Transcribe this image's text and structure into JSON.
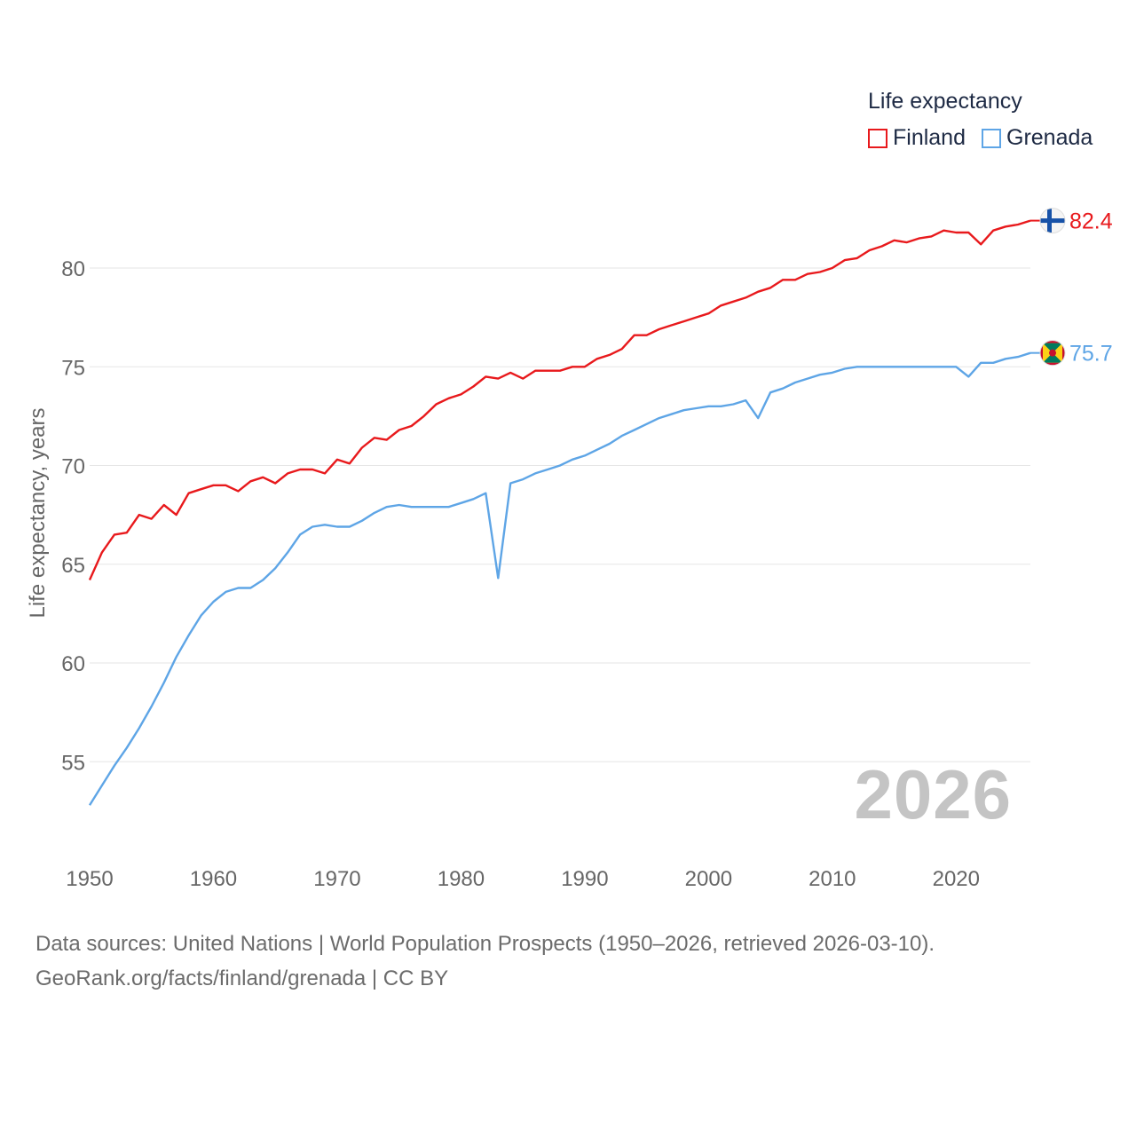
{
  "legend": {
    "title": "Life expectancy",
    "items": [
      {
        "name": "Finland",
        "color": "#e8191c"
      },
      {
        "name": "Grenada",
        "color": "#5ea5e6"
      }
    ]
  },
  "current_year": "2026",
  "footer": {
    "line1": "Data sources: United Nations | World Population Prospects (1950–2026, retrieved 2026-03-10).",
    "line2": "GeoRank.org/facts/finland/grenada | CC BY"
  },
  "chart_data": {
    "type": "line",
    "title": "Life expectancy",
    "xlabel": "",
    "ylabel": "Life expectancy, years",
    "xlim": [
      1950,
      2026
    ],
    "ylim": [
      52,
      84
    ],
    "x_ticks": [
      1950,
      1960,
      1970,
      1980,
      1990,
      2000,
      2010,
      2020
    ],
    "y_ticks": [
      55,
      60,
      65,
      70,
      75,
      80
    ],
    "grid": true,
    "legend_position": "top-right",
    "end_labels": [
      {
        "series": "Finland",
        "label": "82.4",
        "icon": "finland-flag-icon"
      },
      {
        "series": "Grenada",
        "label": "75.7",
        "icon": "grenada-flag-icon"
      }
    ],
    "x": [
      1950,
      1951,
      1952,
      1953,
      1954,
      1955,
      1956,
      1957,
      1958,
      1959,
      1960,
      1961,
      1962,
      1963,
      1964,
      1965,
      1966,
      1967,
      1968,
      1969,
      1970,
      1971,
      1972,
      1973,
      1974,
      1975,
      1976,
      1977,
      1978,
      1979,
      1980,
      1981,
      1982,
      1983,
      1984,
      1985,
      1986,
      1987,
      1988,
      1989,
      1990,
      1991,
      1992,
      1993,
      1994,
      1995,
      1996,
      1997,
      1998,
      1999,
      2000,
      2001,
      2002,
      2003,
      2004,
      2005,
      2006,
      2007,
      2008,
      2009,
      2010,
      2011,
      2012,
      2013,
      2014,
      2015,
      2016,
      2017,
      2018,
      2019,
      2020,
      2021,
      2022,
      2023,
      2024,
      2025,
      2026
    ],
    "series": [
      {
        "name": "Finland",
        "color": "#e8191c",
        "values": [
          64.2,
          65.6,
          66.5,
          66.6,
          67.5,
          67.3,
          68.0,
          67.5,
          68.6,
          68.8,
          69.0,
          69.0,
          68.7,
          69.2,
          69.4,
          69.1,
          69.6,
          69.8,
          69.8,
          69.6,
          70.3,
          70.1,
          70.9,
          71.4,
          71.3,
          71.8,
          72.0,
          72.5,
          73.1,
          73.4,
          73.6,
          74.0,
          74.5,
          74.4,
          74.7,
          74.4,
          74.8,
          74.8,
          74.8,
          75.0,
          75.0,
          75.4,
          75.6,
          75.9,
          76.6,
          76.6,
          76.9,
          77.1,
          77.3,
          77.5,
          77.7,
          78.1,
          78.3,
          78.5,
          78.8,
          79.0,
          79.4,
          79.4,
          79.7,
          79.8,
          80.0,
          80.4,
          80.5,
          80.9,
          81.1,
          81.4,
          81.3,
          81.5,
          81.6,
          81.9,
          81.8,
          81.8,
          81.2,
          81.9,
          82.1,
          82.2,
          82.4
        ]
      },
      {
        "name": "Grenada",
        "color": "#5ea5e6",
        "values": [
          52.8,
          53.8,
          54.8,
          55.7,
          56.7,
          57.8,
          59.0,
          60.3,
          61.4,
          62.4,
          63.1,
          63.6,
          63.8,
          63.8,
          64.2,
          64.8,
          65.6,
          66.5,
          66.9,
          67.0,
          66.9,
          66.9,
          67.2,
          67.6,
          67.9,
          68.0,
          67.9,
          67.9,
          67.9,
          67.9,
          68.1,
          68.3,
          68.6,
          64.3,
          69.1,
          69.3,
          69.6,
          69.8,
          70.0,
          70.3,
          70.5,
          70.8,
          71.1,
          71.5,
          71.8,
          72.1,
          72.4,
          72.6,
          72.8,
          72.9,
          73.0,
          73.0,
          73.1,
          73.3,
          72.4,
          73.7,
          73.9,
          74.2,
          74.4,
          74.6,
          74.7,
          74.9,
          75.0,
          75.0,
          75.0,
          75.0,
          75.0,
          75.0,
          75.0,
          75.0,
          75.0,
          74.5,
          75.2,
          75.2,
          75.4,
          75.5,
          75.7
        ]
      }
    ]
  }
}
